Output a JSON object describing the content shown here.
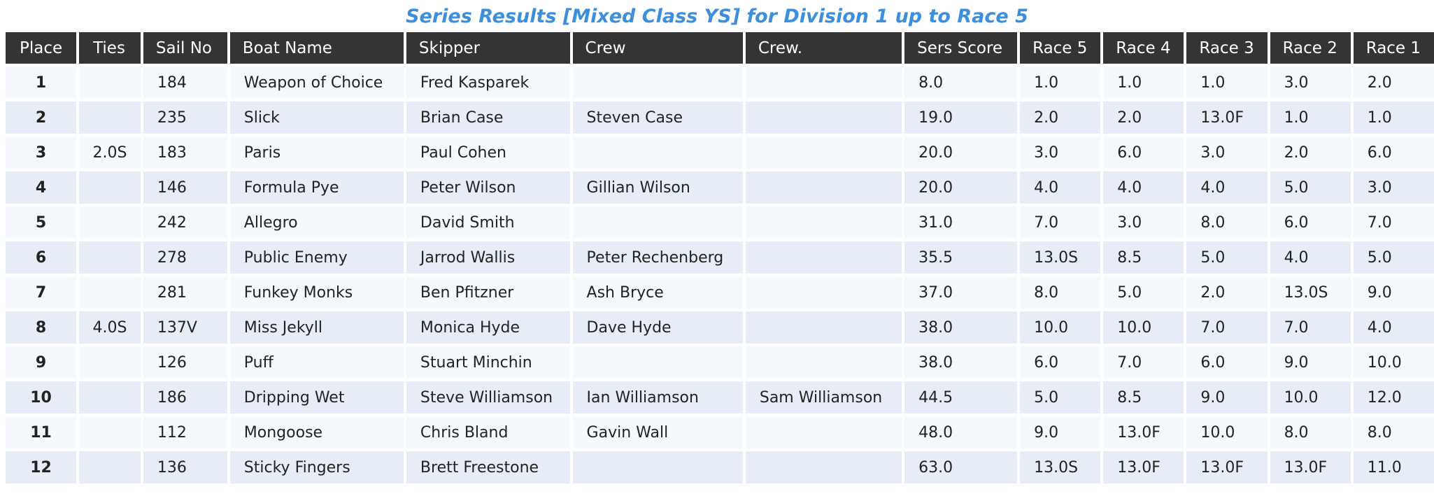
{
  "title": "Series Results [Mixed Class YS] for Division 1 up to Race 5",
  "columns": [
    "Place",
    "Ties",
    "Sail No",
    "Boat Name",
    "Skipper",
    "Crew",
    "Crew.",
    "Sers Score",
    "Race 5",
    "Race 4",
    "Race 3",
    "Race 2",
    "Race 1"
  ],
  "rows": [
    [
      "1",
      "",
      "184",
      "Weapon of Choice",
      "Fred Kasparek",
      "",
      "",
      "8.0",
      "1.0",
      "1.0",
      "1.0",
      "3.0",
      "2.0"
    ],
    [
      "2",
      "",
      "235",
      "Slick",
      "Brian Case",
      "Steven Case",
      "",
      "19.0",
      "2.0",
      "2.0",
      "13.0F",
      "1.0",
      "1.0"
    ],
    [
      "3",
      "2.0S",
      "183",
      "Paris",
      "Paul Cohen",
      "",
      "",
      "20.0",
      "3.0",
      "6.0",
      "3.0",
      "2.0",
      "6.0"
    ],
    [
      "4",
      "",
      "146",
      "Formula Pye",
      "Peter Wilson",
      "Gillian Wilson",
      "",
      "20.0",
      "4.0",
      "4.0",
      "4.0",
      "5.0",
      "3.0"
    ],
    [
      "5",
      "",
      "242",
      "Allegro",
      "David Smith",
      "",
      "",
      "31.0",
      "7.0",
      "3.0",
      "8.0",
      "6.0",
      "7.0"
    ],
    [
      "6",
      "",
      "278",
      "Public Enemy",
      "Jarrod Wallis",
      "Peter Rechenberg",
      "",
      "35.5",
      "13.0S",
      "8.5",
      "5.0",
      "4.0",
      "5.0"
    ],
    [
      "7",
      "",
      "281",
      "Funkey Monks",
      "Ben Pfitzner",
      "Ash Bryce",
      "",
      "37.0",
      "8.0",
      "5.0",
      "2.0",
      "13.0S",
      "9.0"
    ],
    [
      "8",
      "4.0S",
      "137V",
      "Miss Jekyll",
      "Monica Hyde",
      "Dave Hyde",
      "",
      "38.0",
      "10.0",
      "10.0",
      "7.0",
      "7.0",
      "4.0"
    ],
    [
      "9",
      "",
      "126",
      "Puff",
      "Stuart Minchin",
      "",
      "",
      "38.0",
      "6.0",
      "7.0",
      "6.0",
      "9.0",
      "10.0"
    ],
    [
      "10",
      "",
      "186",
      "Dripping Wet",
      "Steve Williamson",
      "Ian Williamson",
      "Sam Williamson",
      "44.5",
      "5.0",
      "8.5",
      "9.0",
      "10.0",
      "12.0"
    ],
    [
      "11",
      "",
      "112",
      "Mongoose",
      "Chris Bland",
      "Gavin Wall",
      "",
      "48.0",
      "9.0",
      "13.0F",
      "10.0",
      "8.0",
      "8.0"
    ],
    [
      "12",
      "",
      "136",
      "Sticky Fingers",
      "Brett Freestone",
      "",
      "",
      "63.0",
      "13.0S",
      "13.0F",
      "13.0F",
      "13.0F",
      "11.0"
    ]
  ],
  "colors": {
    "title": "#3b8fdc",
    "header_bg": "#343434",
    "row_light": "#f5f8fc",
    "row_dark": "#e6edf6"
  }
}
